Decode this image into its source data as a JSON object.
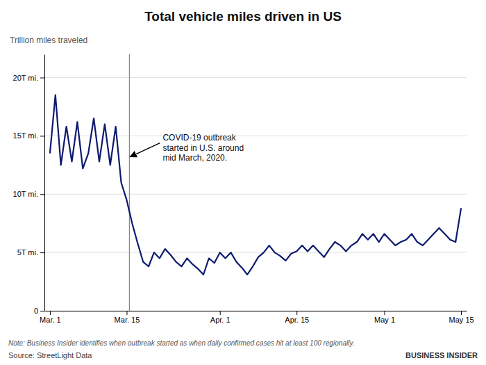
{
  "chart_data": {
    "type": "line",
    "title": "Total vehicle miles driven in US",
    "ylabel": "Trillion miles traveled",
    "x": [
      0,
      1,
      2,
      3,
      4,
      5,
      6,
      7,
      8,
      9,
      10,
      11,
      12,
      13,
      14,
      15,
      16,
      17,
      18,
      19,
      20,
      21,
      22,
      23,
      24,
      25,
      26,
      27,
      28,
      29,
      30,
      31,
      32,
      33,
      34,
      35,
      36,
      37,
      38,
      39,
      40,
      41,
      42,
      43,
      44,
      45,
      46,
      47,
      48,
      49,
      50,
      51,
      52,
      53,
      54,
      55,
      56,
      57,
      58,
      59,
      60,
      61,
      62,
      63,
      64,
      65,
      66,
      67,
      68,
      69,
      70,
      71,
      72,
      73,
      74,
      75
    ],
    "values": [
      13.5,
      18.5,
      12.5,
      15.8,
      12.8,
      16.2,
      12.2,
      13.5,
      16.5,
      12.8,
      16.0,
      12.5,
      15.8,
      11.0,
      9.5,
      7.5,
      5.8,
      4.2,
      3.8,
      5.0,
      4.5,
      5.3,
      4.8,
      4.2,
      3.8,
      4.5,
      4.0,
      3.6,
      3.1,
      4.5,
      4.1,
      5.0,
      4.5,
      5.0,
      4.2,
      3.7,
      3.1,
      3.8,
      4.6,
      5.0,
      5.6,
      5.0,
      4.7,
      4.3,
      4.9,
      5.1,
      5.6,
      5.1,
      5.6,
      5.1,
      4.6,
      5.3,
      5.9,
      5.6,
      5.1,
      5.6,
      5.9,
      6.6,
      6.1,
      6.6,
      5.9,
      6.6,
      6.1,
      5.6,
      5.9,
      6.1,
      6.6,
      5.9,
      5.6,
      6.1,
      6.6,
      7.1,
      6.6,
      6.1,
      5.9,
      8.8
    ],
    "color": "#0d1a6e",
    "xlim": [
      -1,
      76
    ],
    "xticks": [
      {
        "value": 0,
        "label": "Mar. 1"
      },
      {
        "value": 14,
        "label": "Mar. 15"
      },
      {
        "value": 31,
        "label": "Apr. 1"
      },
      {
        "value": 45,
        "label": "Apr. 15"
      },
      {
        "value": 61,
        "label": "May 1"
      },
      {
        "value": 75,
        "label": "May 15"
      }
    ],
    "ylim": [
      0,
      22
    ],
    "yticks": [
      0,
      {
        "value": 5,
        "label": "5T mi."
      },
      {
        "value": 10,
        "label": "10T mi."
      },
      {
        "value": 15,
        "label": "15T mi."
      },
      {
        "value": 20,
        "label": "20T mi."
      }
    ],
    "grid": "y",
    "annotation": {
      "text": "COVID-19 outbreak\nstarted in U.S. around\nmid March, 2020.",
      "x": 14.5,
      "y": 13.2
    },
    "note": "Note: Business Insider identifies when outbreak started as when daily confirmed cases hit at least 100 regionally.",
    "source": "Source: StreetLight Data",
    "credit": "BUSINESS INSIDER"
  }
}
